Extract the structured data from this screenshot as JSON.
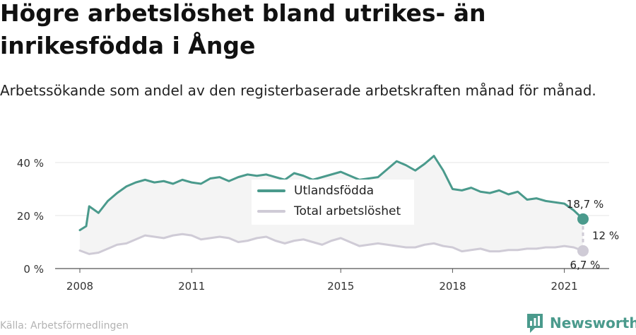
{
  "title": "Högre arbetslöshet bland utrikes- än inrikesfödda i Ånge",
  "subtitle": "Arbetssökande som andel av den registerbaserade arbetskraften månad för månad.",
  "source": "Källa: Arbetsförmedlingen",
  "brand": "Newsworthy",
  "colors": {
    "foreign": "#4a9a8c",
    "total": "#cfcbd6",
    "fill": "#f4f4f4"
  },
  "chart_data": {
    "type": "line",
    "xlim": [
      2008.0,
      2022.0
    ],
    "ylim": [
      0,
      40
    ],
    "x_ticks": [
      2008,
      2011,
      2015,
      2018,
      2021
    ],
    "y_ticks": [
      0,
      20,
      40
    ],
    "y_tick_labels": [
      "0 %",
      "20 %",
      "40 %"
    ],
    "grid": "horizontal",
    "legend_position": "center",
    "series": [
      {
        "name": "Utlandsfödda",
        "x": [
          2008.0,
          2008.17,
          2008.25,
          2008.5,
          2008.75,
          2009.0,
          2009.25,
          2009.5,
          2009.75,
          2010.0,
          2010.25,
          2010.5,
          2010.75,
          2011.0,
          2011.25,
          2011.5,
          2011.75,
          2012.0,
          2012.25,
          2012.5,
          2012.75,
          2013.0,
          2013.25,
          2013.5,
          2013.75,
          2014.0,
          2014.25,
          2014.5,
          2014.75,
          2015.0,
          2015.25,
          2015.5,
          2015.75,
          2016.0,
          2016.25,
          2016.5,
          2016.75,
          2017.0,
          2017.25,
          2017.5,
          2017.75,
          2018.0,
          2018.25,
          2018.5,
          2018.75,
          2019.0,
          2019.25,
          2019.5,
          2019.75,
          2020.0,
          2020.25,
          2020.5,
          2020.75,
          2021.0,
          2021.25,
          2021.5
        ],
        "values": [
          14.5,
          16.0,
          23.5,
          21.0,
          25.5,
          28.5,
          31.0,
          32.5,
          33.5,
          32.5,
          33.0,
          32.0,
          33.5,
          32.5,
          32.0,
          34.0,
          34.5,
          33.0,
          34.5,
          35.5,
          35.0,
          35.5,
          34.5,
          33.5,
          36.0,
          35.0,
          33.5,
          34.5,
          35.5,
          36.5,
          35.0,
          33.5,
          34.0,
          34.5,
          37.5,
          40.5,
          39.0,
          37.0,
          39.5,
          42.5,
          37.0,
          30.0,
          29.5,
          30.5,
          29.0,
          28.5,
          29.5,
          28.0,
          29.0,
          26.0,
          26.5,
          25.5,
          25.0,
          24.5,
          22.0,
          18.7
        ]
      },
      {
        "name": "Total arbetslöshet",
        "x": [
          2008.0,
          2008.25,
          2008.5,
          2008.75,
          2009.0,
          2009.25,
          2009.5,
          2009.75,
          2010.0,
          2010.25,
          2010.5,
          2010.75,
          2011.0,
          2011.25,
          2011.5,
          2011.75,
          2012.0,
          2012.25,
          2012.5,
          2012.75,
          2013.0,
          2013.25,
          2013.5,
          2013.75,
          2014.0,
          2014.25,
          2014.5,
          2014.75,
          2015.0,
          2015.25,
          2015.5,
          2015.75,
          2016.0,
          2016.25,
          2016.5,
          2016.75,
          2017.0,
          2017.25,
          2017.5,
          2017.75,
          2018.0,
          2018.25,
          2018.5,
          2018.75,
          2019.0,
          2019.25,
          2019.5,
          2019.75,
          2020.0,
          2020.25,
          2020.5,
          2020.75,
          2021.0,
          2021.25,
          2021.5
        ],
        "values": [
          6.8,
          5.5,
          6.0,
          7.5,
          9.0,
          9.5,
          11.0,
          12.5,
          12.0,
          11.5,
          12.5,
          13.0,
          12.5,
          11.0,
          11.5,
          12.0,
          11.5,
          10.0,
          10.5,
          11.5,
          12.0,
          10.5,
          9.5,
          10.5,
          11.0,
          10.0,
          9.0,
          10.5,
          11.5,
          10.0,
          8.5,
          9.0,
          9.5,
          9.0,
          8.5,
          8.0,
          8.0,
          9.0,
          9.5,
          8.5,
          8.0,
          6.5,
          7.0,
          7.5,
          6.5,
          6.5,
          7.0,
          7.0,
          7.5,
          7.5,
          8.0,
          8.0,
          8.5,
          8.0,
          6.7
        ]
      }
    ],
    "end_labels": {
      "foreign": "18,7 %",
      "total": "6,7 %",
      "gap": "12 %"
    }
  }
}
